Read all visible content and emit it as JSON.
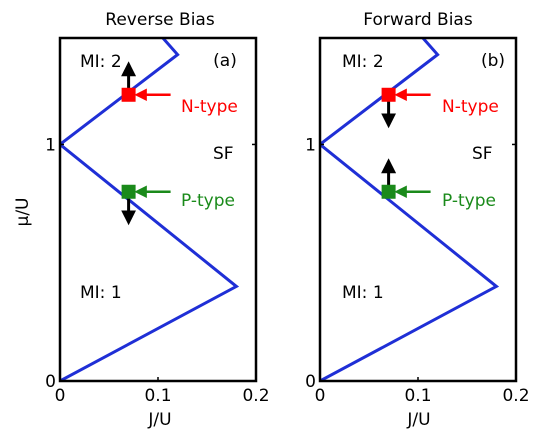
{
  "colors": {
    "boundary": "#1f2fd6",
    "ntype": "#ff0000",
    "ptype": "#1a8a1a",
    "arrow": "#000000"
  },
  "chart_data": [
    {
      "type": "line",
      "title": "Reverse Bias",
      "panel_label": "(a)",
      "xlabel": "J/U",
      "ylabel": "μ/U",
      "xlim": [
        0,
        0.2
      ],
      "ylim": [
        0,
        1.45
      ],
      "xticks": [
        "0",
        "0.1",
        "0.2"
      ],
      "yticks": [
        "0",
        "1"
      ],
      "series": [
        {
          "values": [
            [
              0,
              0
            ],
            [
              0.18,
              0.4
            ],
            [
              0,
              1.0
            ],
            [
              0.12,
              1.38
            ],
            [
              0.105,
              1.45
            ]
          ]
        }
      ],
      "annotations": {
        "mi2": "MI: 2",
        "mi1": "MI: 1",
        "sf": "SF",
        "ntype": "N-type",
        "ptype": "P-type"
      },
      "markers": [
        {
          "type": "ntype",
          "x": 0.07,
          "y": 1.21,
          "arrow": "up"
        },
        {
          "type": "ptype",
          "x": 0.07,
          "y": 0.8,
          "arrow": "down"
        }
      ]
    },
    {
      "type": "line",
      "title": "Forward Bias",
      "panel_label": "(b)",
      "xlabel": "J/U",
      "ylabel": "",
      "xlim": [
        0,
        0.2
      ],
      "ylim": [
        0,
        1.45
      ],
      "xticks": [
        "0",
        "0.1",
        "0.2"
      ],
      "yticks": [
        "0",
        "1"
      ],
      "series": [
        {
          "values": [
            [
              0,
              0
            ],
            [
              0.18,
              0.4
            ],
            [
              0,
              1.0
            ],
            [
              0.12,
              1.38
            ],
            [
              0.105,
              1.45
            ]
          ]
        }
      ],
      "annotations": {
        "mi2": "MI: 2",
        "mi1": "MI: 1",
        "sf": "SF",
        "ntype": "N-type",
        "ptype": "P-type"
      },
      "markers": [
        {
          "type": "ntype",
          "x": 0.07,
          "y": 1.21,
          "arrow": "down"
        },
        {
          "type": "ptype",
          "x": 0.07,
          "y": 0.8,
          "arrow": "up"
        }
      ]
    }
  ]
}
